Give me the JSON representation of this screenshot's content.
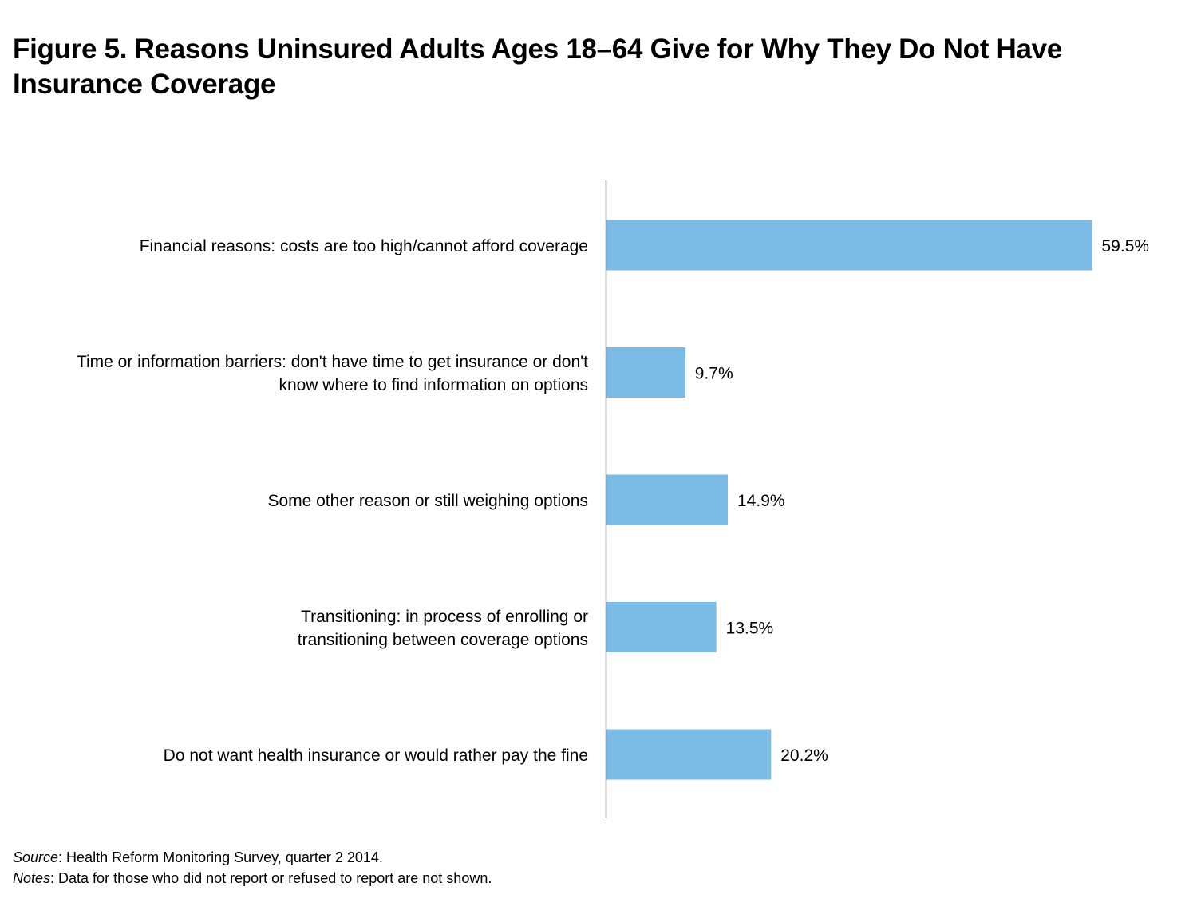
{
  "title": "Figure 5. Reasons Uninsured Adults Ages 18–64 Give for Why They Do Not Have Insurance Coverage",
  "colors": {
    "bar": "#7BBCE6",
    "axis": "#808080",
    "text": "#000000"
  },
  "chart_data": {
    "type": "bar",
    "orientation": "horizontal",
    "title": "Figure 5. Reasons Uninsured Adults Ages 18–64 Give for Why They Do Not Have Insurance Coverage",
    "categories": [
      [
        "Financial reasons: costs are too high/cannot afford coverage"
      ],
      [
        "Time or information barriers: don't have time to get insurance or don't",
        "know where to find information on options"
      ],
      [
        "Some other reason or still weighing options"
      ],
      [
        "Transitioning: in process of enrolling or",
        "transitioning between coverage options"
      ],
      [
        "Do not want health insurance or would rather pay the fine"
      ]
    ],
    "values": [
      59.5,
      9.7,
      14.9,
      13.5,
      20.2
    ],
    "value_labels": [
      "59.5%",
      "9.7%",
      "14.9%",
      "13.5%",
      "20.2%"
    ],
    "unit": "%",
    "xlabel": "",
    "ylabel": "",
    "grid": false,
    "legend": "none"
  },
  "footer": {
    "source_label": "Source",
    "source_text": ": Health Reform Monitoring  Survey, quarter 2 2014.",
    "notes_label": "Notes",
    "notes_text": ":  Data for those who did not report or refused to report are not shown."
  }
}
